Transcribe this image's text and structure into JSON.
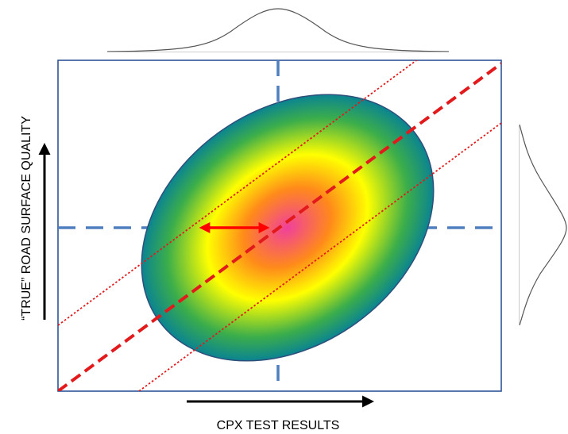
{
  "x_axis_label": "CPX TEST RESULTS",
  "y_axis_label": "“TRUE” ROAD SURFACE QUALITY",
  "colors": {
    "frame": "#2f5597",
    "center_lines": "#4f7fbf",
    "regression_line": "#e31a1c",
    "ellipse_center": "#f0489a",
    "ellipse_mid": "#ffff00",
    "ellipse_edge": "#0f8a8f",
    "distribution_curves": "#555555",
    "arrows": "#000000"
  }
}
